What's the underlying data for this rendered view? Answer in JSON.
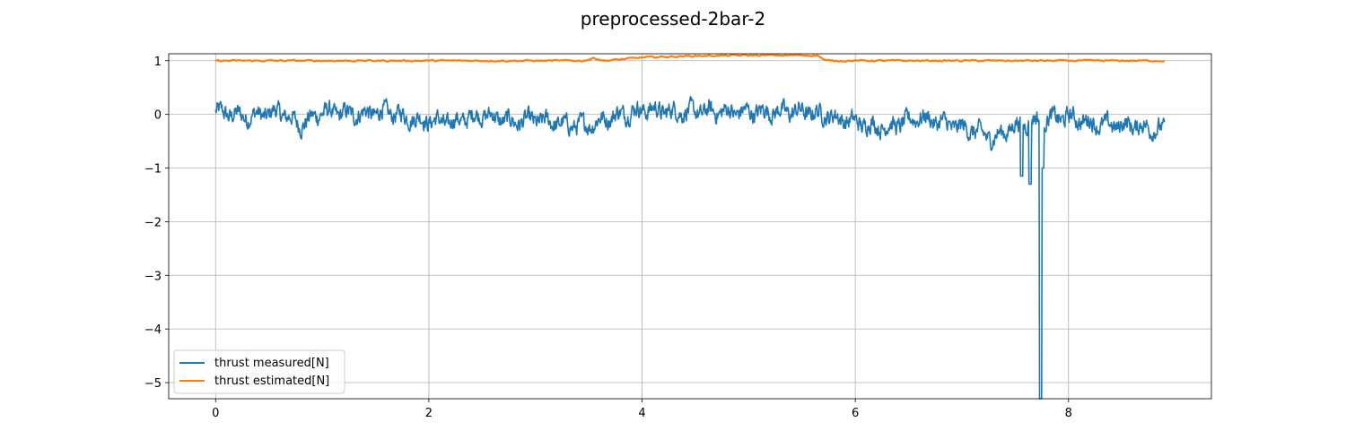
{
  "chart_data": {
    "type": "line",
    "title": "preprocessed-2bar-2",
    "xlabel": "",
    "ylabel": "",
    "xlim": [
      -0.44,
      9.34
    ],
    "ylim": [
      -5.3,
      1.13
    ],
    "xticks": [
      0,
      2,
      4,
      6,
      8
    ],
    "yticks": [
      1,
      0,
      -1,
      -2,
      -3,
      -4,
      -5
    ],
    "xtick_labels": [
      "0",
      "2",
      "4",
      "6",
      "8"
    ],
    "ytick_labels": [
      "1",
      "0",
      "−1",
      "−2",
      "−3",
      "−4",
      "−5"
    ],
    "grid": true,
    "legend_position": "lower-left",
    "series": [
      {
        "name": "thrust measured[N]",
        "color": "#1f77b4",
        "x_start": 0,
        "x_end": 8.9,
        "baseline": [
          [
            0.0,
            0.05
          ],
          [
            0.3,
            -0.05
          ],
          [
            0.6,
            0.05
          ],
          [
            0.8,
            -0.2
          ],
          [
            1.0,
            0.05
          ],
          [
            1.3,
            0.0
          ],
          [
            1.6,
            0.05
          ],
          [
            1.9,
            -0.1
          ],
          [
            2.2,
            -0.15
          ],
          [
            2.5,
            0.0
          ],
          [
            2.8,
            -0.15
          ],
          [
            3.0,
            -0.1
          ],
          [
            3.3,
            -0.2
          ],
          [
            3.5,
            -0.2
          ],
          [
            3.7,
            -0.05
          ],
          [
            4.0,
            0.1
          ],
          [
            4.3,
            0.05
          ],
          [
            4.6,
            0.05
          ],
          [
            5.0,
            0.05
          ],
          [
            5.5,
            0.05
          ],
          [
            5.7,
            0.0
          ],
          [
            6.0,
            -0.15
          ],
          [
            6.3,
            -0.25
          ],
          [
            6.6,
            -0.05
          ],
          [
            6.9,
            -0.2
          ],
          [
            7.1,
            -0.3
          ],
          [
            7.3,
            -0.45
          ],
          [
            7.5,
            -0.2
          ],
          [
            7.7,
            -0.1
          ],
          [
            8.0,
            -0.05
          ],
          [
            8.3,
            -0.2
          ],
          [
            8.6,
            -0.2
          ],
          [
            8.9,
            -0.3
          ]
        ],
        "spikes": [
          [
            7.56,
            -1.15
          ],
          [
            7.64,
            -1.3
          ],
          [
            7.74,
            -5.3
          ],
          [
            7.76,
            -1.0
          ]
        ]
      },
      {
        "name": "thrust estimated[N]",
        "color": "#ff7f0e",
        "x_start": 0,
        "x_end": 8.9,
        "baseline": [
          [
            0.0,
            1.0
          ],
          [
            3.45,
            1.0
          ],
          [
            3.55,
            1.05
          ],
          [
            3.65,
            1.0
          ],
          [
            4.0,
            1.06
          ],
          [
            4.5,
            1.09
          ],
          [
            5.0,
            1.1
          ],
          [
            5.65,
            1.1
          ],
          [
            5.72,
            1.0
          ],
          [
            8.9,
            1.0
          ]
        ],
        "spikes": []
      }
    ]
  }
}
